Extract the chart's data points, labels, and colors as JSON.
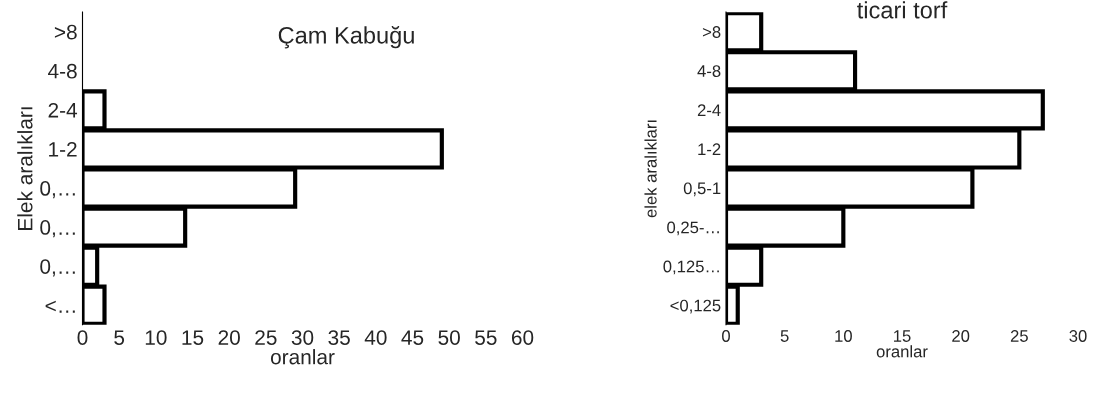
{
  "chart_data": [
    {
      "type": "bar",
      "orientation": "horizontal",
      "title": "Çam Kabuğu",
      "xlabel": "oranlar",
      "ylabel": "Elek aralıkları",
      "categories": [
        ">8",
        "4-8",
        "2-4",
        "1-2",
        "0,…",
        "0,…",
        "0,…",
        "<…"
      ],
      "values": [
        0,
        0,
        3,
        49,
        29,
        14,
        2,
        3
      ],
      "color": "#ffffff",
      "xlim": [
        0,
        60
      ],
      "xticks": [
        0,
        5,
        10,
        15,
        20,
        25,
        30,
        35,
        40,
        45,
        50,
        55,
        60
      ]
    },
    {
      "type": "bar",
      "orientation": "horizontal",
      "title": "ticari torf",
      "xlabel": "oranlar",
      "ylabel": "elek aralıkları",
      "categories": [
        ">8",
        "4-8",
        "2-4",
        "1-2",
        "0,5-1",
        "0,25-…",
        "0,125…",
        "<0,125"
      ],
      "values": [
        3,
        11,
        27,
        25,
        21,
        10,
        3,
        1
      ],
      "color": "#ffffff",
      "xlim": [
        0,
        30
      ],
      "xticks": [
        0,
        5,
        10,
        15,
        20,
        25,
        30
      ]
    }
  ]
}
